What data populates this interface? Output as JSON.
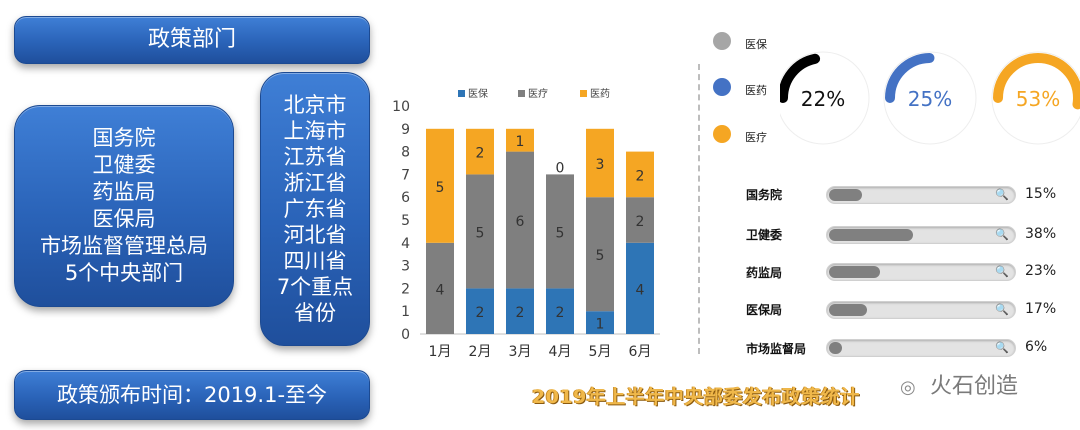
{
  "left_panel": {
    "dept_title": "政策部门",
    "central_depts": [
      "国务院",
      "卫健委",
      "药监局",
      "医保局",
      "市场监督管理总局",
      "5个中央部门"
    ],
    "provinces": [
      "北京市",
      "上海市",
      "江苏省",
      "浙江省",
      "广东省",
      "河北省",
      "四川省",
      "7个重点",
      "省份"
    ],
    "time_label": "政策颁布时间：2019.1-至今"
  },
  "chart_data": [
    {
      "type": "bar",
      "stacked": true,
      "title": "2019年上半年中央部委发布政策统计",
      "categories": [
        "1月",
        "2月",
        "3月",
        "4月",
        "5月",
        "6月"
      ],
      "series": [
        {
          "name": "医保",
          "color": "#2e75b6",
          "values": [
            0,
            2,
            2,
            2,
            1,
            4
          ]
        },
        {
          "name": "医疗",
          "color": "#7f7f7f",
          "values": [
            4,
            5,
            6,
            5,
            5,
            2
          ]
        },
        {
          "name": "医药",
          "color": "#f5a623",
          "values": [
            5,
            2,
            1,
            0,
            3,
            2
          ]
        }
      ],
      "ylim": [
        0,
        10
      ],
      "yticks": [
        0,
        1,
        2,
        3,
        4,
        5,
        6,
        7,
        8,
        9,
        10
      ],
      "legend": "top"
    },
    {
      "type": "pie",
      "name": "donuts",
      "slices": [
        {
          "name": "医保",
          "value": 22,
          "label": "22%",
          "color": "#000000"
        },
        {
          "name": "医药",
          "value": 25,
          "label": "25%",
          "color": "#4472c4"
        },
        {
          "name": "医疗",
          "value": 53,
          "label": "53%",
          "color": "#f5a623"
        }
      ]
    },
    {
      "type": "bar",
      "orientation": "horizontal",
      "categories": [
        "国务院",
        "卫健委",
        "药监局",
        "医保局",
        "市场监督局"
      ],
      "values": [
        15,
        38,
        23,
        17,
        6
      ],
      "labels": [
        "15%",
        "38%",
        "23%",
        "17%",
        "6%"
      ],
      "xlim": [
        0,
        100
      ]
    }
  ],
  "type_legend": [
    {
      "label": "医保",
      "color": "#a6a6a6"
    },
    {
      "label": "医药",
      "color": "#4472c4"
    },
    {
      "label": "医疗",
      "color": "#f5a623"
    }
  ],
  "brand": {
    "icon": "wechat-icon",
    "name": "火石创造"
  },
  "search_icon": "search-icon"
}
